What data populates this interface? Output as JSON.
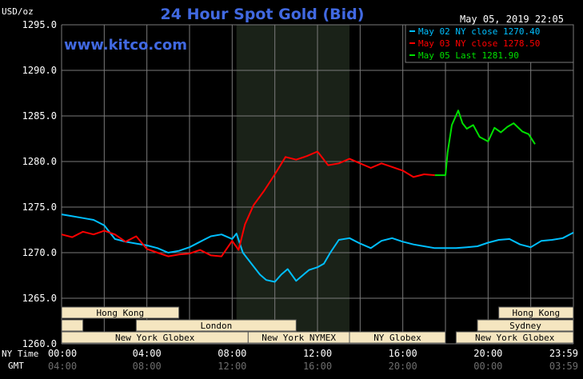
{
  "header": {
    "unit": "USD/oz",
    "title": "24 Hour Spot Gold (Bid)",
    "timestamp": "May 05, 2019 22:05",
    "watermark": "www.kitco.com"
  },
  "colors": {
    "background": "#000000",
    "grid": "#7a7a7a",
    "title": "#4169e1",
    "watermark": "#4169e1",
    "series_blue": "#00bfff",
    "series_red": "#ff0000",
    "series_green": "#00e000",
    "session_bg": "#f5e6c0",
    "nymex_shade": "#1a2218"
  },
  "legend": {
    "position": "top-right",
    "items": [
      {
        "label": "May 02 NY close 1270.40",
        "color": "#00bfff"
      },
      {
        "label": "May 03 NY close 1278.50",
        "color": "#ff0000"
      },
      {
        "label": "May 05 Last 1281.90",
        "color": "#00e000"
      }
    ]
  },
  "sessions": [
    {
      "row": 0,
      "label": "Hong Kong",
      "start": 0,
      "end": 11
    },
    {
      "row": 1,
      "label": "",
      "start": 0,
      "end": 2
    },
    {
      "row": 1,
      "label": "London",
      "start": 7,
      "end": 22
    },
    {
      "row": 2,
      "label": "New York Globex",
      "start": 0,
      "end": 17.5
    },
    {
      "row": 2,
      "label": "New York NYMEX",
      "start": 17.5,
      "end": 27
    },
    {
      "row": 2,
      "label": "NY Globex",
      "start": 27,
      "end": 36
    },
    {
      "row": 0,
      "label": "Hong Kong",
      "start": 41,
      "end": 48
    },
    {
      "row": 1,
      "label": "Sydney",
      "start": 39,
      "end": 48
    },
    {
      "row": 2,
      "label": "New York Globex",
      "start": 37,
      "end": 48
    }
  ],
  "time_axis": {
    "ny_label": "NY Time",
    "gmt_label": "GMT",
    "ny_ticks": [
      "00:00",
      "04:00",
      "08:00",
      "12:00",
      "16:00",
      "20:00",
      "23:59"
    ],
    "gmt_ticks": [
      "04:00",
      "08:00",
      "12:00",
      "16:00",
      "20:00",
      "00:00",
      "03:59"
    ]
  },
  "chart_data": {
    "type": "line",
    "title": "24 Hour Spot Gold (Bid)",
    "ylabel": "USD/oz",
    "ylim": [
      1260,
      1295
    ],
    "xlim_hours": [
      0,
      24
    ],
    "yticks": [
      "1260.0",
      "1265.0",
      "1270.0",
      "1275.0",
      "1280.0",
      "1285.0",
      "1290.0",
      "1295.0"
    ],
    "shaded_region_hours": [
      8.2,
      13.5
    ],
    "grid": true,
    "series": [
      {
        "name": "May 02 NY close 1270.40",
        "color": "#00bfff",
        "x": [
          0,
          0.5,
          1,
          1.5,
          2,
          2.5,
          3,
          3.5,
          4,
          4.5,
          5,
          5.5,
          6,
          6.5,
          7,
          7.5,
          8,
          8.2,
          8.5,
          9,
          9.3,
          9.6,
          10,
          10.3,
          10.6,
          11,
          11.3,
          11.6,
          12,
          12.3,
          12.6,
          13,
          13.5,
          14,
          14.5,
          15,
          15.5,
          16,
          16.5,
          17,
          17.5,
          18,
          18.5,
          19,
          19.5,
          20,
          20.5,
          21,
          21.5,
          22,
          22.5,
          23,
          23.5,
          24
        ],
        "y": [
          1274.2,
          1274.0,
          1273.8,
          1273.6,
          1273.0,
          1271.5,
          1271.2,
          1271.0,
          1270.8,
          1270.5,
          1270.0,
          1270.2,
          1270.6,
          1271.2,
          1271.8,
          1272.0,
          1271.5,
          1272.1,
          1270.0,
          1268.5,
          1267.6,
          1267.0,
          1266.8,
          1267.6,
          1268.2,
          1266.9,
          1267.5,
          1268.1,
          1268.4,
          1268.8,
          1270.0,
          1271.4,
          1271.6,
          1271.0,
          1270.5,
          1271.3,
          1271.6,
          1271.2,
          1270.9,
          1270.7,
          1270.5,
          1270.5,
          1270.5,
          1270.6,
          1270.7,
          1271.1,
          1271.4,
          1271.5,
          1270.9,
          1270.6,
          1271.3,
          1271.4,
          1271.6,
          1272.2
        ]
      },
      {
        "name": "May 03 NY close 1278.50",
        "color": "#ff0000",
        "x": [
          0,
          0.5,
          1,
          1.5,
          2,
          2.5,
          3,
          3.5,
          4,
          4.5,
          5,
          5.5,
          6,
          6.5,
          7,
          7.5,
          8,
          8.3,
          8.6,
          9,
          9.5,
          10,
          10.5,
          11,
          11.5,
          12,
          12.5,
          13,
          13.5,
          14,
          14.5,
          15,
          15.5,
          16,
          16.5,
          17,
          17.5
        ],
        "y": [
          1272.0,
          1271.7,
          1272.3,
          1272.0,
          1272.4,
          1272.0,
          1271.2,
          1271.8,
          1270.4,
          1270.0,
          1269.6,
          1269.8,
          1269.9,
          1270.3,
          1269.7,
          1269.6,
          1271.3,
          1270.3,
          1273.1,
          1275.2,
          1276.8,
          1278.6,
          1280.5,
          1280.2,
          1280.6,
          1281.1,
          1279.6,
          1279.8,
          1280.3,
          1279.8,
          1279.3,
          1279.8,
          1279.4,
          1279.0,
          1278.3,
          1278.6,
          1278.5
        ]
      },
      {
        "name": "May 05 Last 1281.90",
        "color": "#00e000",
        "x": [
          17.5,
          18.0,
          18.1,
          18.3,
          18.6,
          18.8,
          19.0,
          19.3,
          19.6,
          20.0,
          20.3,
          20.6,
          20.9,
          21.2,
          21.6,
          21.9,
          22.2
        ],
        "y": [
          1278.5,
          1278.5,
          1281.0,
          1284.0,
          1285.6,
          1284.2,
          1283.6,
          1284.0,
          1282.7,
          1282.2,
          1283.7,
          1283.2,
          1283.8,
          1284.2,
          1283.3,
          1283.0,
          1281.9
        ]
      }
    ]
  }
}
